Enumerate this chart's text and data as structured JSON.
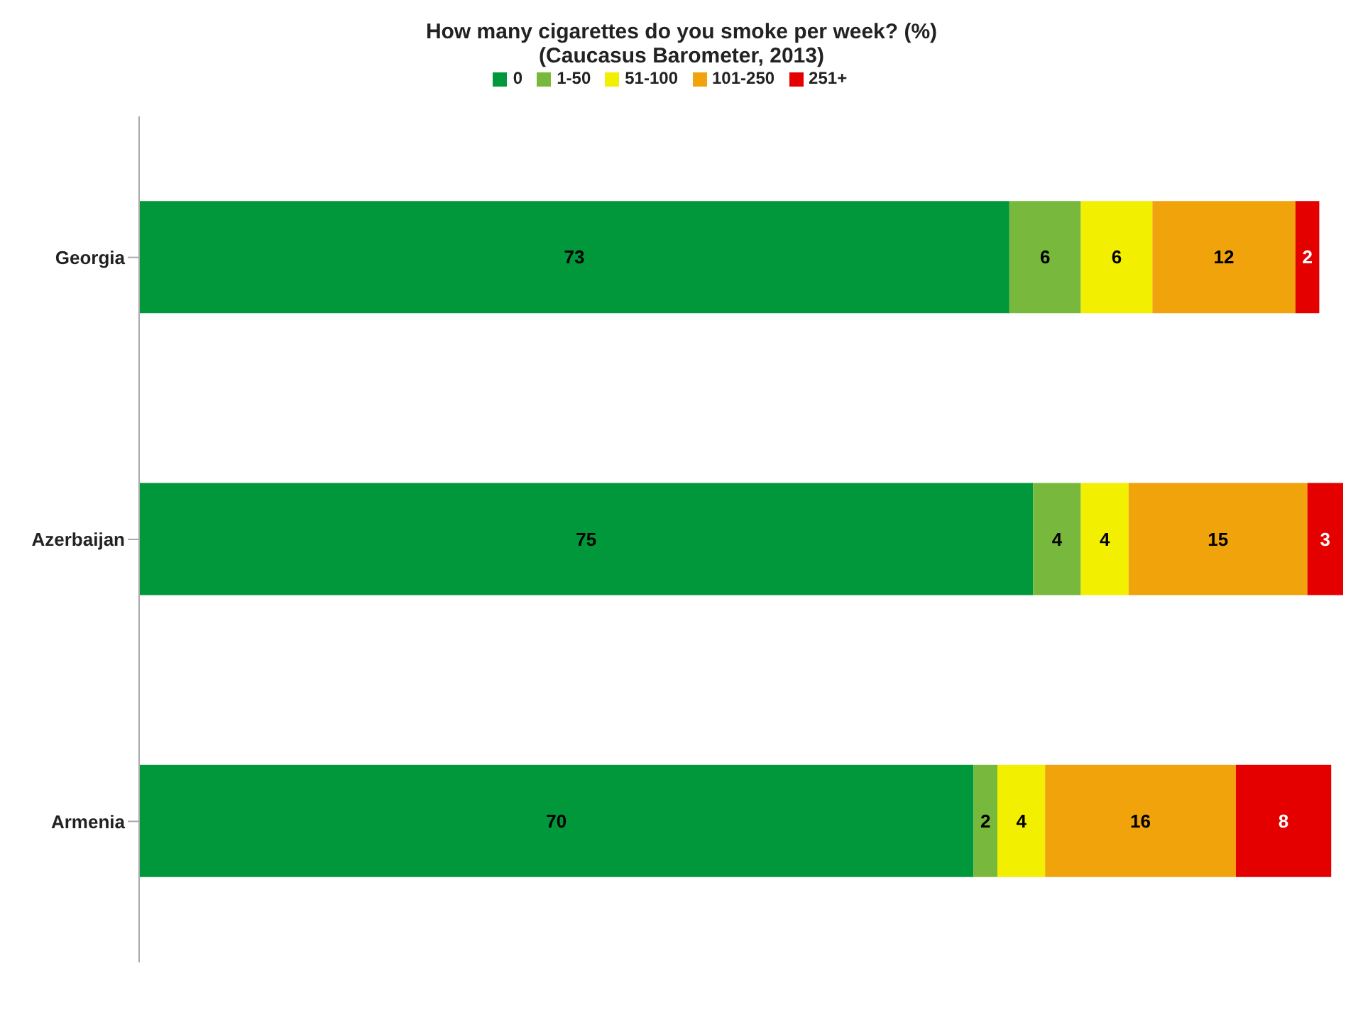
{
  "chart_data": {
    "type": "bar",
    "orientation": "horizontal",
    "stacked": true,
    "title": "How many cigarettes do you smoke per week? (%)",
    "subtitle": "(Caucasus Barometer, 2013)",
    "categories": [
      "Georgia",
      "Azerbaijan",
      "Armenia"
    ],
    "series": [
      {
        "name": "0",
        "color": "#00983a",
        "values": [
          73,
          75,
          70
        ]
      },
      {
        "name": "1-50",
        "color": "#78b83c",
        "values": [
          6,
          4,
          2
        ]
      },
      {
        "name": "51-100",
        "color": "#f2f000",
        "values": [
          6,
          4,
          4
        ]
      },
      {
        "name": "101-250",
        "color": "#f0a30a",
        "values": [
          12,
          15,
          16
        ]
      },
      {
        "name": "251+",
        "color": "#e50000",
        "values": [
          2,
          3,
          8
        ]
      }
    ],
    "data_labels": true,
    "legend": "top",
    "grid": false
  }
}
